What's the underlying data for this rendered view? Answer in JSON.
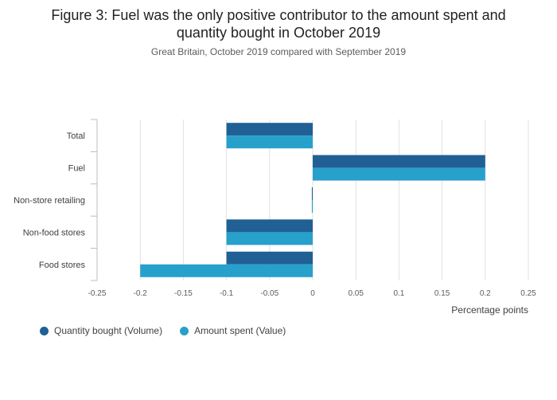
{
  "title_line1": "Figure 3: Fuel was the only positive contributor to the amount spent and",
  "title_line2": "quantity bought in October 2019",
  "subtitle": "Great Britain, October 2019 compared with September 2019",
  "colors": {
    "volume": "#206095",
    "value": "#27a0cc",
    "grid": "#e2e2e2",
    "axis": "#bcbcbc"
  },
  "chart_data": {
    "type": "bar",
    "orientation": "horizontal",
    "title": "Figure 3: Fuel was the only positive contributor to the amount spent and quantity bought in October 2019",
    "subtitle": "Great Britain, October 2019 compared with September 2019",
    "xlabel": "Percentage points",
    "ylabel": "",
    "xlim": [
      -0.25,
      0.25
    ],
    "xticks": [
      -0.25,
      -0.2,
      -0.15,
      -0.1,
      -0.05,
      0,
      0.05,
      0.1,
      0.15,
      0.2,
      0.25
    ],
    "xtick_labels": [
      "-0.25",
      "-0.2",
      "-0.15",
      "-0.1",
      "-0.05",
      "0",
      "0.05",
      "0.1",
      "0.15",
      "0.2",
      "0.25"
    ],
    "grid": true,
    "categories": [
      "Total",
      "Fuel",
      "Non-store retailing",
      "Non-food stores",
      "Food stores"
    ],
    "series": [
      {
        "name": "Quantity bought (Volume)",
        "values": [
          -0.1,
          0.2,
          -0.001,
          -0.1,
          -0.1
        ]
      },
      {
        "name": "Amount spent (Value)",
        "values": [
          -0.1,
          0.2,
          -0.001,
          -0.1,
          -0.2
        ]
      }
    ],
    "legend_position": "bottom-left"
  }
}
